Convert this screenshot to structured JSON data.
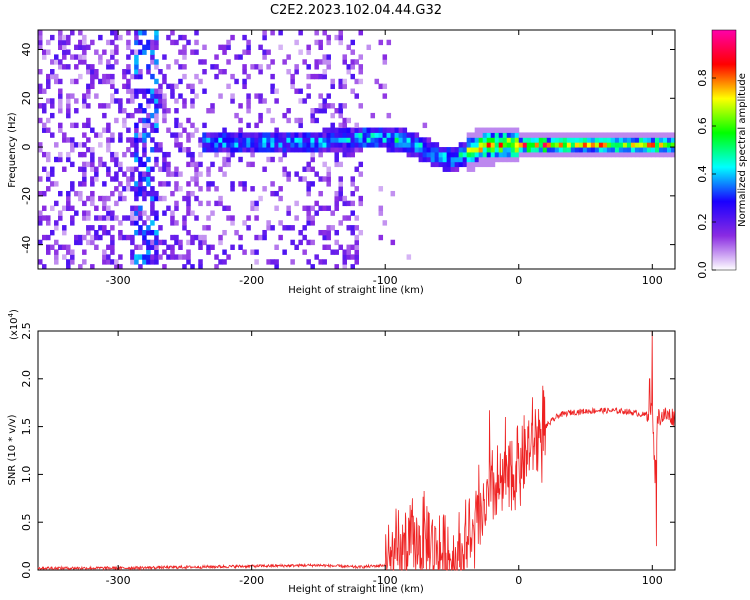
{
  "title": "C2E2.2023.102.04.44.G32",
  "chart_data": [
    {
      "type": "heatmap",
      "xlabel": "Height of straight line (km)",
      "ylabel": "Frequency (Hz)",
      "xlim": [
        -360,
        117
      ],
      "ylim": [
        -50,
        48
      ],
      "x_ticks": [
        -300,
        -200,
        -100,
        0,
        100
      ],
      "y_ticks": [
        -40,
        -20,
        0,
        20,
        40
      ],
      "colorbar": {
        "label": "Normalized spectral amplitude",
        "range": [
          0,
          1
        ],
        "ticks": [
          "0.0",
          "0.2",
          "0.4",
          "0.6",
          "0.8"
        ],
        "tick_values": [
          0,
          0.2,
          0.4,
          0.6,
          0.8
        ],
        "colors": [
          "#ffffff",
          "#8a2be2",
          "#1a00ff",
          "#00ffff",
          "#00ff00",
          "#ffff00",
          "#ff0000",
          "#ff00aa"
        ]
      },
      "ridge": {
        "description_points": [
          [
            -235,
            2
          ],
          [
            -200,
            2
          ],
          [
            -150,
            2
          ],
          [
            -120,
            4
          ],
          [
            -100,
            4
          ],
          [
            -80,
            1
          ],
          [
            -60,
            -4
          ],
          [
            -50,
            -5
          ],
          [
            -40,
            -2
          ],
          [
            -30,
            0
          ],
          [
            -20,
            1
          ],
          [
            0,
            1
          ],
          [
            20,
            1
          ],
          [
            50,
            1
          ],
          [
            80,
            1
          ],
          [
            100,
            1
          ],
          [
            117,
            1
          ]
        ]
      }
    },
    {
      "type": "line",
      "xlabel": "Height of straight line (km)",
      "ylabel": "SNR (10 * v/v)",
      "y_multiplier": "(x10",
      "y_multiplier_exp": "4",
      "xlim": [
        -360,
        117
      ],
      "ylim": [
        0,
        2.5
      ],
      "x_ticks": [
        -300,
        -200,
        -100,
        0,
        100
      ],
      "y_ticks": [
        "0.0",
        "0.5",
        "1.0",
        "1.5",
        "2.0",
        "2.5"
      ],
      "y_tick_values": [
        0,
        0.5,
        1.0,
        1.5,
        2.0,
        2.5
      ],
      "line_color": "#ee2222",
      "envelope": [
        [
          -360,
          0.02
        ],
        [
          -300,
          0.02
        ],
        [
          -250,
          0.03
        ],
        [
          -200,
          0.04
        ],
        [
          -150,
          0.05
        ],
        [
          -120,
          0.03
        ],
        [
          -100,
          0.05
        ],
        [
          -90,
          0.15
        ],
        [
          -80,
          0.25
        ],
        [
          -70,
          0.3
        ],
        [
          -60,
          0.2
        ],
        [
          -50,
          0.1
        ],
        [
          -40,
          0.2
        ],
        [
          -30,
          0.5
        ],
        [
          -20,
          0.8
        ],
        [
          -10,
          0.9
        ],
        [
          0,
          1.1
        ],
        [
          10,
          1.3
        ],
        [
          20,
          1.5
        ],
        [
          30,
          1.62
        ],
        [
          40,
          1.65
        ],
        [
          60,
          1.67
        ],
        [
          80,
          1.66
        ],
        [
          95,
          1.62
        ],
        [
          100,
          1.7
        ],
        [
          102,
          1.0
        ],
        [
          104,
          1.6
        ],
        [
          110,
          1.62
        ],
        [
          117,
          1.6
        ]
      ],
      "spikes": [
        [
          -22,
          1.67
        ],
        [
          -10,
          1.6
        ],
        [
          -30,
          1.1
        ],
        [
          -85,
          0.6
        ],
        [
          -78,
          0.5
        ],
        [
          100,
          2.5
        ],
        [
          103,
          0.25
        ],
        [
          98,
          2.0
        ],
        [
          -5,
          1.35
        ],
        [
          -40,
          0.5
        ]
      ]
    }
  ]
}
